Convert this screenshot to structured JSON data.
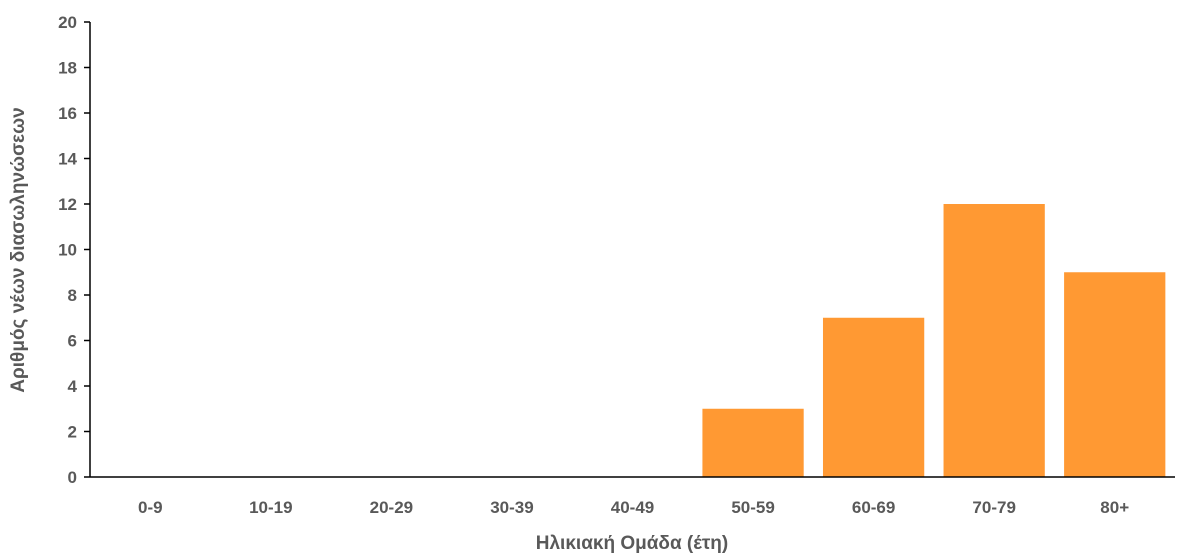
{
  "chart_data": {
    "type": "bar",
    "title": "",
    "xlabel": "Ηλικιακή Ομάδα (έτη)",
    "ylabel": "Αριθμός νέων διασωληνώσεων",
    "categories": [
      "0-9",
      "10-19",
      "20-29",
      "30-39",
      "40-49",
      "50-59",
      "60-69",
      "70-79",
      "80+"
    ],
    "values": [
      0,
      0,
      0,
      0,
      0,
      3,
      7,
      12,
      9
    ],
    "ylim": [
      0,
      20
    ],
    "yticks": [
      "0",
      "2",
      "4",
      "6",
      "8",
      "10",
      "12",
      "14",
      "16",
      "18",
      "20"
    ],
    "grid": false,
    "legend": "none",
    "bar_color": "#FF9933"
  }
}
